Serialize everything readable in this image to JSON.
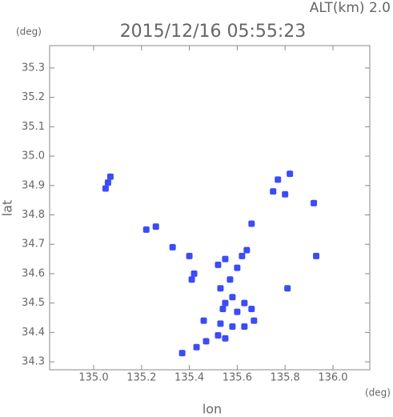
{
  "chart_data": {
    "type": "scatter",
    "title": "2015/12/16 05:55:23",
    "altitude_label": "ALT(km) 2.0",
    "y_unit": "(deg)",
    "x_unit": "(deg)",
    "x_label": "lon",
    "y_label": "lat",
    "color": "#3c4cf5",
    "x": [
      135.06,
      135.05,
      135.07,
      135.22,
      135.26,
      135.33,
      135.4,
      135.42,
      135.41,
      135.52,
      135.55,
      135.57,
      135.6,
      135.62,
      135.64,
      135.53,
      135.55,
      135.54,
      135.58,
      135.6,
      135.63,
      135.66,
      135.67,
      135.46,
      135.53,
      135.58,
      135.52,
      135.47,
      135.43,
      135.37,
      135.55,
      135.63,
      135.75,
      135.77,
      135.82,
      135.8,
      135.92,
      135.66,
      135.93,
      135.81
    ],
    "y": [
      34.91,
      34.89,
      34.93,
      34.75,
      34.76,
      34.69,
      34.66,
      34.6,
      34.58,
      34.63,
      34.65,
      34.58,
      34.62,
      34.66,
      34.68,
      34.55,
      34.5,
      34.48,
      34.52,
      34.47,
      34.5,
      34.48,
      34.44,
      34.44,
      34.43,
      34.42,
      34.39,
      34.37,
      34.35,
      34.33,
      34.38,
      34.42,
      34.88,
      34.92,
      34.94,
      34.87,
      34.84,
      34.77,
      34.66,
      34.55
    ],
    "xlim": [
      134.816,
      136.154
    ],
    "ylim": [
      34.273,
      35.376
    ],
    "xticks": [
      {
        "value": 135.0,
        "label": "135.0"
      },
      {
        "value": 135.2,
        "label": "135.2"
      },
      {
        "value": 135.4,
        "label": "135.4"
      },
      {
        "value": 135.6,
        "label": "135.6"
      },
      {
        "value": 135.8,
        "label": "135.8"
      },
      {
        "value": 136.0,
        "label": "136.0"
      }
    ],
    "yticks": [
      34.3,
      34.4,
      34.5,
      34.6,
      34.7,
      34.8,
      34.9,
      {
        "value": 35.0,
        "label": "35.0"
      },
      35.1,
      35.2,
      35.3
    ]
  }
}
